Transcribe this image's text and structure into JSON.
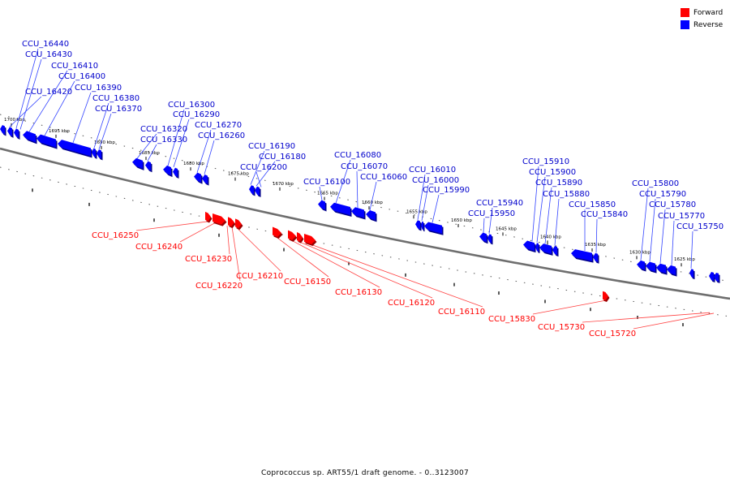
{
  "legend": {
    "forward_label": "Forward",
    "reverse_label": "Reverse",
    "forward_color": "#ff0000",
    "reverse_color": "#0000ff"
  },
  "caption": "Coprococcus sp. ART55/1 draft genome. - 0..3123007",
  "colors": {
    "backbone": "#707070",
    "tick": "#000000",
    "forward_label_text": "#ff0000",
    "reverse_label_text": "#0000cc",
    "forward_leader_line": "#ff4444",
    "reverse_leader_line": "#3344ff"
  },
  "scale_ticks": [
    "1700 kbp",
    "1695 kbp",
    "1690 kbp",
    "1685 kbp",
    "1680 kbp",
    "1675 kbp",
    "1670 kbp",
    "1665 kbp",
    "1660 kbp",
    "1655 kbp",
    "1650 kbp",
    "1645 kbp",
    "1640 kbp",
    "1635 kbp",
    "1630 kbp",
    "1625 kbp"
  ],
  "forward_genes": [
    "CCU_16250",
    "CCU_16240",
    "CCU_16230",
    "CCU_16220",
    "CCU_16210",
    "CCU_16150",
    "CCU_16130",
    "CCU_16120",
    "CCU_16110",
    "CCU_15830",
    "CCU_15730",
    "CCU_15720"
  ],
  "reverse_genes": [
    "CCU_16440",
    "CCU_16430",
    "CCU_16410",
    "CCU_16400",
    "CCU_16420",
    "CCU_16390",
    "CCU_16380",
    "CCU_16370",
    "CCU_16300",
    "CCU_16290",
    "CCU_16320",
    "CCU_16270",
    "CCU_16330",
    "CCU_16260",
    "CCU_16190",
    "CCU_16180",
    "CCU_16200",
    "CCU_16080",
    "CCU_16070",
    "CCU_16100",
    "CCU_16060",
    "CCU_16010",
    "CCU_16000",
    "CCU_15990",
    "CCU_15940",
    "CCU_15950",
    "CCU_15910",
    "CCU_15900",
    "CCU_15890",
    "CCU_15880",
    "CCU_15850",
    "CCU_15840",
    "CCU_15800",
    "CCU_15790",
    "CCU_15780",
    "CCU_15770",
    "CCU_15750"
  ]
}
